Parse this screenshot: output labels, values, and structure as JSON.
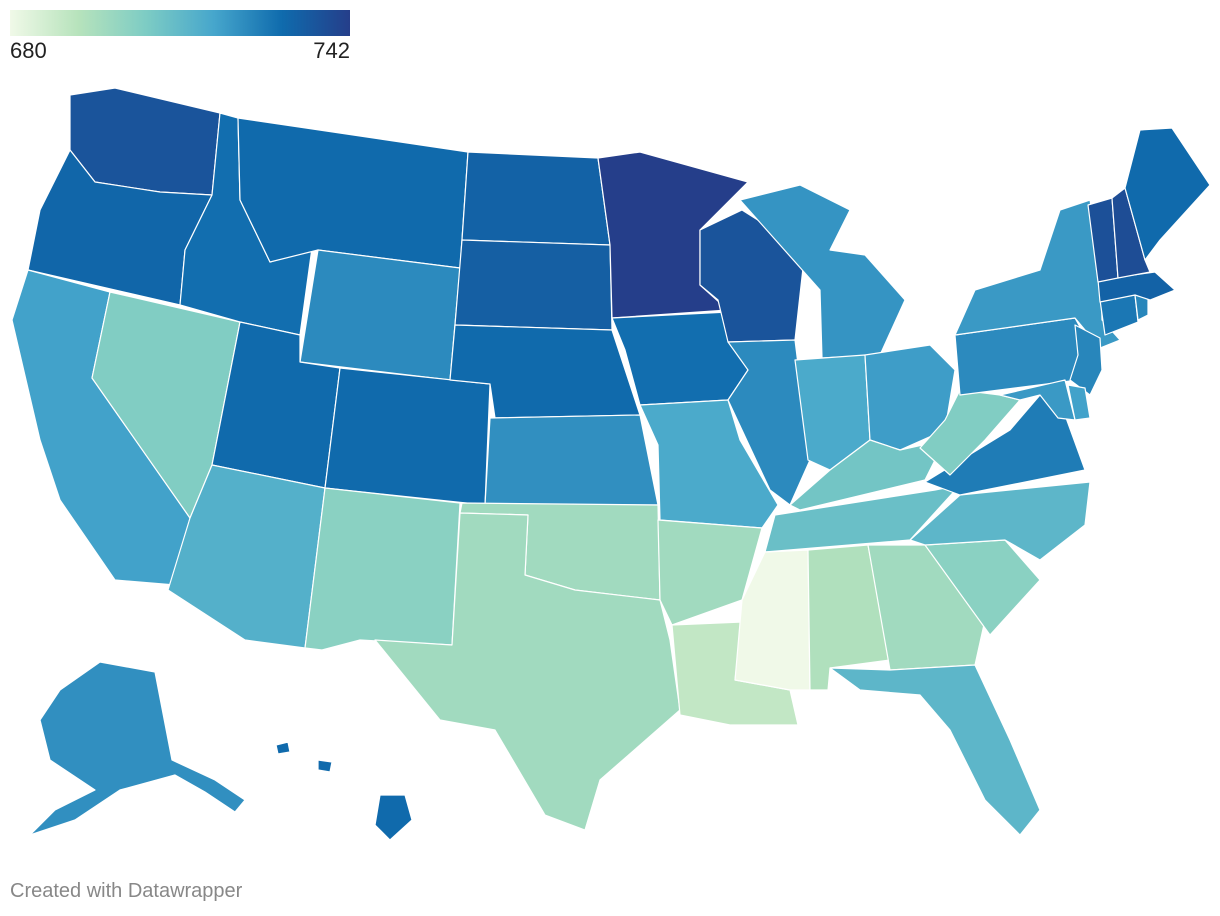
{
  "legend": {
    "min_label": "680",
    "max_label": "742"
  },
  "color_scale": {
    "min": 680,
    "max": 742,
    "stops": [
      "#f0f9e8",
      "#b7e3bc",
      "#7dccc4",
      "#46a6cc",
      "#0f6bad",
      "#253e8a"
    ]
  },
  "credit": "Created with Datawrapper",
  "states": {
    "WA": 736,
    "OR": 731,
    "CA": 718,
    "NV": 704,
    "ID": 729,
    "MT": 730,
    "WY": 723,
    "UT": 730,
    "AZ": 714,
    "CO": 730,
    "NM": 702,
    "ND": 732,
    "SD": 733,
    "NE": 730,
    "KS": 722,
    "OK": 697,
    "TX": 697,
    "MN": 742,
    "IA": 729,
    "MO": 716,
    "AR": 697,
    "LA": 690,
    "WI": 736,
    "IL": 723,
    "MS": 680,
    "AL": 694,
    "MI": 721,
    "IN": 716,
    "KY": 707,
    "TN": 709,
    "GA": 697,
    "FL": 712,
    "SC": 702,
    "NC": 712,
    "VA": 726,
    "WV": 704,
    "OH": 719,
    "PA": 723,
    "NY": 720,
    "VT": 737,
    "NH": 738,
    "ME": 730,
    "MA": 732,
    "CT": 727,
    "RI": 724,
    "NJ": 724,
    "DE": 718,
    "MD": 720,
    "AK": 722,
    "HI": 730
  }
}
